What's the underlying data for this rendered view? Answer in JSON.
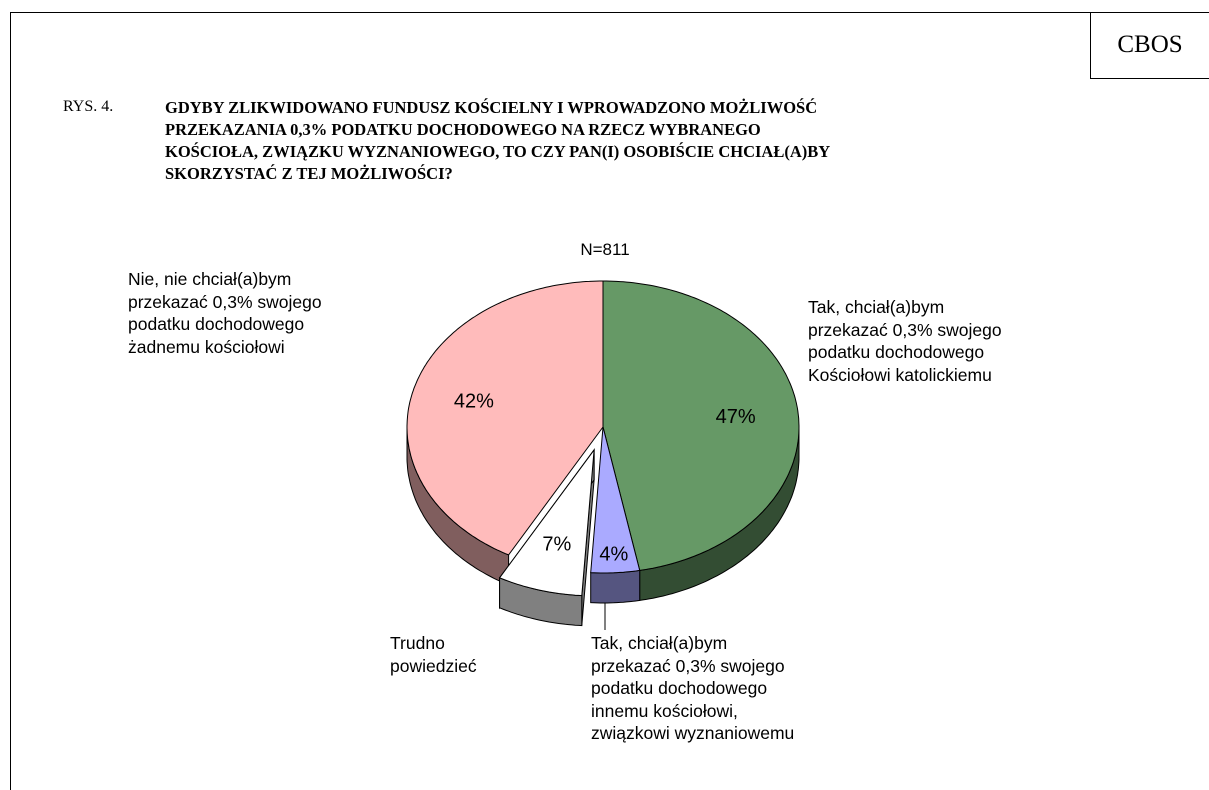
{
  "chart_data": {
    "type": "pie",
    "source": "CBOS",
    "figure_label": "RYS. 4.",
    "title": "GDYBY ZLIKWIDOWANO FUNDUSZ KOŚCIELNY I WPROWADZONO MOŻLIWOŚĆ\nPRZEKAZANIA 0,3% PODATKU DOCHODOWEGO NA RZECZ WYBRANEGO\nKOŚCIOŁA, ZWIĄZKU WYZNANIOWEGO, TO CZY PAN(I) OSOBIŚCIE CHCIAŁ(A)BY\nSKORZYSTAĆ Z TEJ MOŻLIWOŚCI?",
    "subtitle": "N=811",
    "categories": [
      "Tak, chciał(a)bym\nprzekazać 0,3% swojego\npodatku dochodowego\nKościołowi katolickiemu",
      "Tak, chciał(a)bym\nprzekazać 0,3% swojego\npodatku dochodowego\ninnemu kościołowi,\nzwiązkowi wyznaniowemu",
      "Trudno\npowiedzieć",
      "Nie, nie chciał(a)bym\nprzekazać 0,3% swojego\npodatku dochodowego\nżadnemu kościołowi"
    ],
    "values": [
      47,
      4,
      7,
      42
    ],
    "value_labels": [
      "47%",
      "4%",
      "7%",
      "42%"
    ],
    "colors": [
      "#669966",
      "#aaaaff",
      "#ffffff",
      "#ffbbbb"
    ],
    "exploded": [
      false,
      false,
      true,
      false
    ]
  }
}
